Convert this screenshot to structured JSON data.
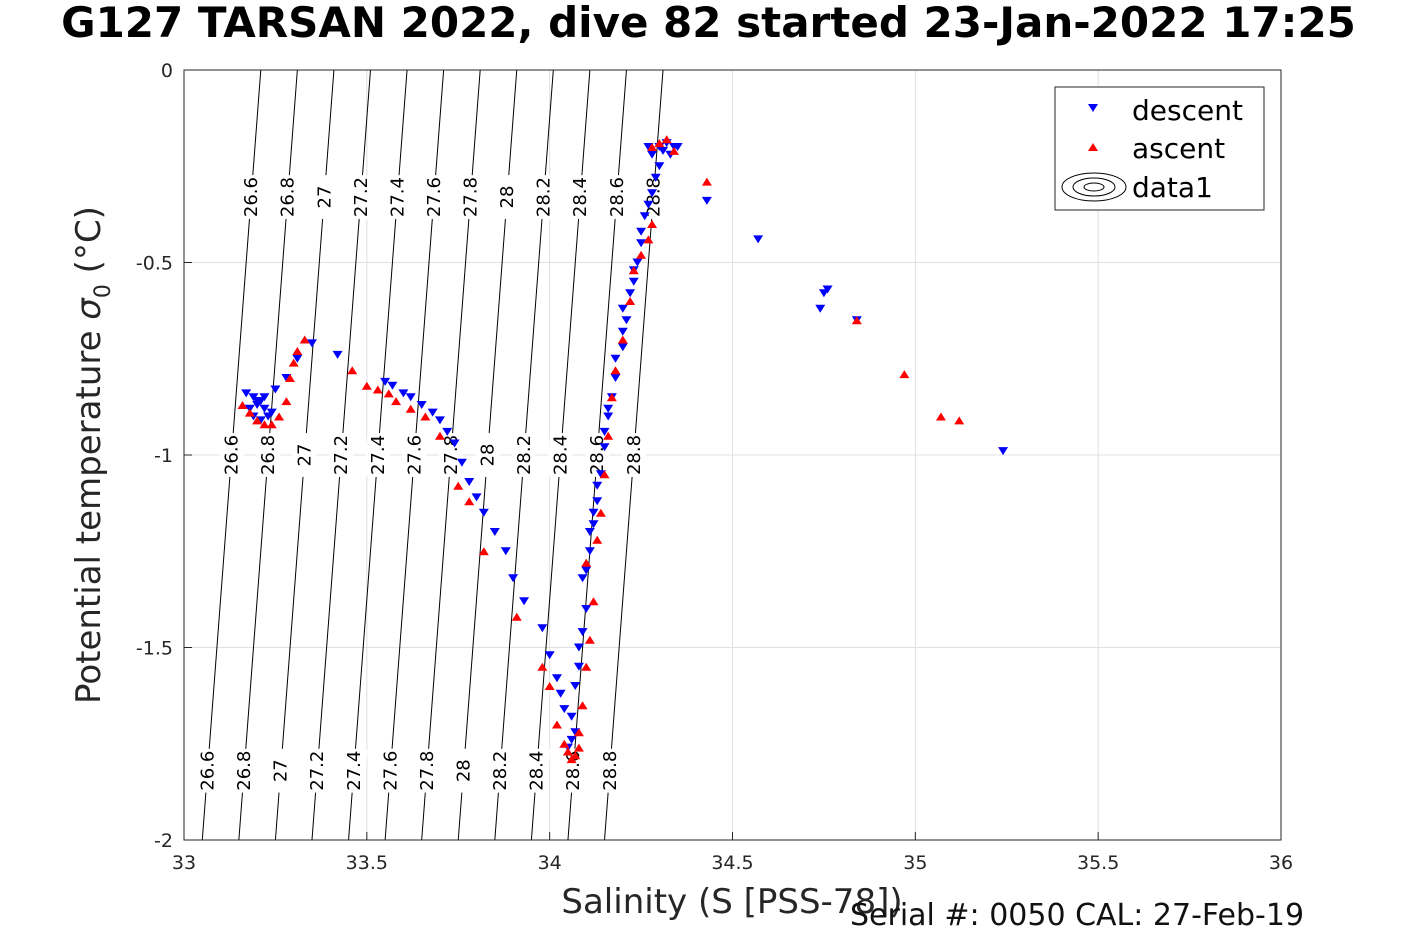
{
  "title": "G127 TARSAN 2022, dive 82 started 23-Jan-2022 17:25",
  "footer": "Serial #: 0050  CAL: 27-Feb-19",
  "colors": {
    "descent": "#0000ff",
    "ascent": "#ff0000",
    "grid": "#e0e0e0",
    "axis": "#262626"
  },
  "chart_data": {
    "type": "scatter",
    "title": "G127 TARSAN 2022, dive 82 started 23-Jan-2022 17:25",
    "xlabel": "Salinity (S [PSS-78])",
    "ylabel_main": "Potential temperature ",
    "ylabel_sigma": "σ",
    "ylabel_sub": "0",
    "ylabel_unit": " (°C)",
    "xlim": [
      33,
      36
    ],
    "ylim": [
      -2,
      0
    ],
    "xticks": [
      "33",
      "33.5",
      "34",
      "34.5",
      "35",
      "35.5",
      "36"
    ],
    "yticks": [
      "0",
      "-0.5",
      "-1",
      "-1.5",
      "-2"
    ],
    "grid": true,
    "legend_position": "top-right",
    "legend": [
      "descent",
      "ascent",
      "data1"
    ],
    "contour_levels": [
      "26.6",
      "26.8",
      "27",
      "27.2",
      "27.4",
      "27.6",
      "27.8",
      "28",
      "28.2",
      "28.4",
      "28.6",
      "28.8"
    ],
    "series": [
      {
        "name": "descent",
        "marker": "down-triangle",
        "x": [
          33.17,
          33.19,
          33.21,
          33.2,
          33.18,
          33.22,
          33.24,
          33.19,
          33.21,
          33.23,
          33.2,
          33.22,
          33.25,
          33.28,
          33.31,
          33.35,
          33.42,
          33.55,
          33.57,
          33.6,
          33.62,
          33.65,
          33.68,
          33.7,
          33.72,
          33.74,
          33.76,
          33.78,
          33.8,
          33.82,
          33.85,
          33.88,
          33.9,
          33.93,
          33.98,
          34.0,
          34.02,
          34.03,
          34.04,
          34.06,
          34.05,
          34.07,
          34.06,
          34.08,
          34.08,
          34.09,
          34.07,
          34.1,
          34.09,
          34.11,
          34.1,
          34.12,
          34.11,
          34.13,
          34.12,
          34.14,
          34.13,
          34.15,
          34.15,
          34.16,
          34.17,
          34.16,
          34.18,
          34.18,
          34.2,
          34.2,
          34.21,
          34.2,
          34.22,
          34.23,
          34.23,
          34.24,
          34.25,
          34.25,
          34.26,
          34.27,
          34.28,
          34.29,
          34.3,
          34.28,
          34.3,
          34.31,
          34.32,
          34.33,
          34.34,
          34.27,
          34.35,
          34.43,
          34.57,
          34.74,
          34.75,
          34.76,
          34.84,
          35.24
        ],
        "y": [
          -0.84,
          -0.85,
          -0.86,
          -0.87,
          -0.88,
          -0.88,
          -0.89,
          -0.9,
          -0.91,
          -0.9,
          -0.86,
          -0.85,
          -0.83,
          -0.8,
          -0.75,
          -0.71,
          -0.74,
          -0.81,
          -0.82,
          -0.84,
          -0.85,
          -0.87,
          -0.89,
          -0.91,
          -0.94,
          -0.97,
          -1.02,
          -1.07,
          -1.11,
          -1.15,
          -1.2,
          -1.25,
          -1.32,
          -1.38,
          -1.45,
          -1.52,
          -1.58,
          -1.62,
          -1.66,
          -1.74,
          -1.76,
          -1.72,
          -1.68,
          -1.55,
          -1.5,
          -1.46,
          -1.6,
          -1.4,
          -1.32,
          -1.25,
          -1.3,
          -1.18,
          -1.2,
          -1.12,
          -1.15,
          -1.05,
          -1.08,
          -0.98,
          -0.94,
          -0.9,
          -0.85,
          -0.88,
          -0.8,
          -0.75,
          -0.72,
          -0.68,
          -0.65,
          -0.62,
          -0.58,
          -0.55,
          -0.52,
          -0.5,
          -0.45,
          -0.42,
          -0.38,
          -0.35,
          -0.32,
          -0.28,
          -0.25,
          -0.22,
          -0.2,
          -0.21,
          -0.19,
          -0.22,
          -0.2,
          -0.2,
          -0.2,
          -0.34,
          -0.44,
          -0.62,
          -0.58,
          -0.57,
          -0.65,
          -0.99
        ]
      },
      {
        "name": "ascent",
        "marker": "up-triangle",
        "x": [
          33.16,
          33.18,
          33.2,
          33.22,
          33.24,
          33.26,
          33.28,
          33.29,
          33.3,
          33.31,
          33.33,
          33.46,
          33.5,
          33.53,
          33.56,
          33.58,
          33.62,
          33.66,
          33.7,
          33.75,
          33.78,
          33.82,
          33.91,
          33.98,
          34.0,
          34.02,
          34.04,
          34.05,
          34.06,
          34.07,
          34.08,
          34.08,
          34.09,
          34.1,
          34.11,
          34.12,
          34.1,
          34.13,
          34.14,
          34.15,
          34.16,
          34.17,
          34.18,
          34.2,
          34.22,
          34.23,
          34.25,
          34.27,
          34.28,
          34.28,
          34.3,
          34.32,
          34.34,
          34.43,
          34.84,
          34.97,
          35.07,
          35.12
        ],
        "y": [
          -0.87,
          -0.89,
          -0.91,
          -0.92,
          -0.92,
          -0.9,
          -0.86,
          -0.8,
          -0.76,
          -0.73,
          -0.7,
          -0.78,
          -0.82,
          -0.83,
          -0.84,
          -0.86,
          -0.88,
          -0.9,
          -0.95,
          -1.08,
          -1.12,
          -1.25,
          -1.42,
          -1.55,
          -1.6,
          -1.7,
          -1.75,
          -1.77,
          -1.79,
          -1.78,
          -1.76,
          -1.72,
          -1.65,
          -1.55,
          -1.48,
          -1.38,
          -1.28,
          -1.22,
          -1.15,
          -1.05,
          -0.95,
          -0.85,
          -0.78,
          -0.7,
          -0.6,
          -0.52,
          -0.48,
          -0.44,
          -0.4,
          -0.2,
          -0.19,
          -0.18,
          -0.21,
          -0.29,
          -0.65,
          -0.79,
          -0.9,
          -0.91
        ]
      }
    ]
  }
}
